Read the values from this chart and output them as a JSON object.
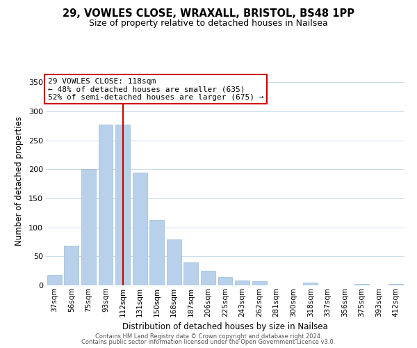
{
  "title": "29, VOWLES CLOSE, WRAXALL, BRISTOL, BS48 1PP",
  "subtitle": "Size of property relative to detached houses in Nailsea",
  "xlabel": "Distribution of detached houses by size in Nailsea",
  "ylabel": "Number of detached properties",
  "bar_labels": [
    "37sqm",
    "56sqm",
    "75sqm",
    "93sqm",
    "112sqm",
    "131sqm",
    "150sqm",
    "168sqm",
    "187sqm",
    "206sqm",
    "225sqm",
    "243sqm",
    "262sqm",
    "281sqm",
    "300sqm",
    "318sqm",
    "337sqm",
    "356sqm",
    "375sqm",
    "393sqm",
    "412sqm"
  ],
  "bar_values": [
    18,
    69,
    200,
    277,
    277,
    195,
    113,
    79,
    40,
    25,
    15,
    8,
    7,
    0,
    0,
    5,
    0,
    0,
    2,
    0,
    2
  ],
  "bar_color": "#b8d0ea",
  "vline_bar_index": 4,
  "vline_color": "#cc0000",
  "annotation_title": "29 VOWLES CLOSE: 118sqm",
  "annotation_line1": "← 48% of detached houses are smaller (635)",
  "annotation_line2": "52% of semi-detached houses are larger (675) →",
  "annotation_box_facecolor": "#ffffff",
  "annotation_box_edgecolor": "#cc0000",
  "ylim": [
    0,
    360
  ],
  "yticks": [
    0,
    50,
    100,
    150,
    200,
    250,
    300,
    350
  ],
  "footer1": "Contains HM Land Registry data © Crown copyright and database right 2024.",
  "footer2": "Contains public sector information licensed under the Open Government Licence v3.0.",
  "background_color": "#ffffff",
  "grid_color": "#ccddee",
  "title_fontsize": 10.5,
  "subtitle_fontsize": 9,
  "axis_label_fontsize": 8.5,
  "tick_fontsize": 7.5,
  "annotation_fontsize": 8,
  "footer_fontsize": 6
}
